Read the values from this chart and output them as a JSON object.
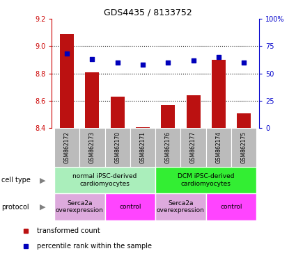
{
  "title": "GDS4435 / 8133752",
  "samples": [
    "GSM862172",
    "GSM862173",
    "GSM862170",
    "GSM862171",
    "GSM862176",
    "GSM862177",
    "GSM862174",
    "GSM862175"
  ],
  "red_values": [
    9.09,
    8.81,
    8.63,
    8.405,
    8.57,
    8.64,
    8.9,
    8.51
  ],
  "blue_values": [
    68,
    63,
    60,
    58,
    60,
    62,
    65,
    60
  ],
  "ylim_left": [
    8.4,
    9.2
  ],
  "ylim_right": [
    0,
    100
  ],
  "yticks_left": [
    8.4,
    8.6,
    8.8,
    9.0,
    9.2
  ],
  "yticks_right": [
    0,
    25,
    50,
    75,
    100
  ],
  "ytick_labels_right": [
    "0",
    "25",
    "50",
    "75",
    "100%"
  ],
  "cell_type_groups": [
    {
      "label": "normal iPSC-derived\ncardiomyocytes",
      "start": 0,
      "end": 4,
      "color": "#AAEEBB"
    },
    {
      "label": "DCM iPSC-derived\ncardiomyocytes",
      "start": 4,
      "end": 8,
      "color": "#33EE33"
    }
  ],
  "protocol_groups": [
    {
      "label": "Serca2a\noverexpression",
      "start": 0,
      "end": 2,
      "color": "#DDAADD"
    },
    {
      "label": "control",
      "start": 2,
      "end": 4,
      "color": "#FF44FF"
    },
    {
      "label": "Serca2a\noverexpression",
      "start": 4,
      "end": 6,
      "color": "#DDAADD"
    },
    {
      "label": "control",
      "start": 6,
      "end": 8,
      "color": "#FF44FF"
    }
  ],
  "bar_color": "#BB1111",
  "dot_color": "#0000BB",
  "bar_bottom": 8.4,
  "bg_color": "#FFFFFF",
  "left_axis_color": "#CC0000",
  "right_axis_color": "#0000CC",
  "sample_bg_color": "#BBBBBB",
  "legend_red_label": "transformed count",
  "legend_blue_label": "percentile rank within the sample",
  "cell_type_label": "cell type",
  "protocol_label": "protocol"
}
